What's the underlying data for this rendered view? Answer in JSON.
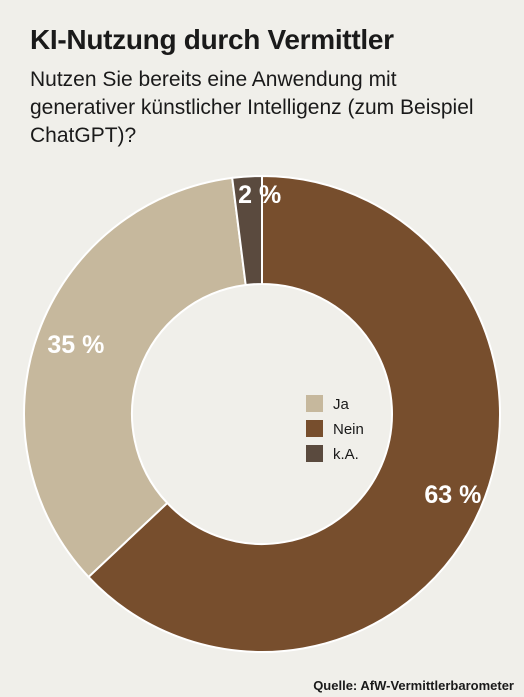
{
  "header": {
    "title": "KI-Nutzung durch Vermittler",
    "subtitle": "Nutzen Sie bereits eine Anwendung mit generativer künstlicher Intelligenz (zum Beispiel ChatGPT)?"
  },
  "chart_data": {
    "type": "pie",
    "style": "donut",
    "slices": [
      {
        "label": "Nein",
        "value": 63,
        "display": "63 %",
        "color": "#774e2d"
      },
      {
        "label": "Ja",
        "value": 35,
        "display": "35 %",
        "color": "#c6b89d"
      },
      {
        "label": "k.A.",
        "value": 2,
        "display": "2 %",
        "color": "#5a4a3e"
      }
    ],
    "legend": {
      "position": "center",
      "order": [
        "Ja",
        "Nein",
        "k.A."
      ]
    }
  },
  "footer": {
    "source": "Quelle: AfW-Vermittlerbarometer"
  }
}
